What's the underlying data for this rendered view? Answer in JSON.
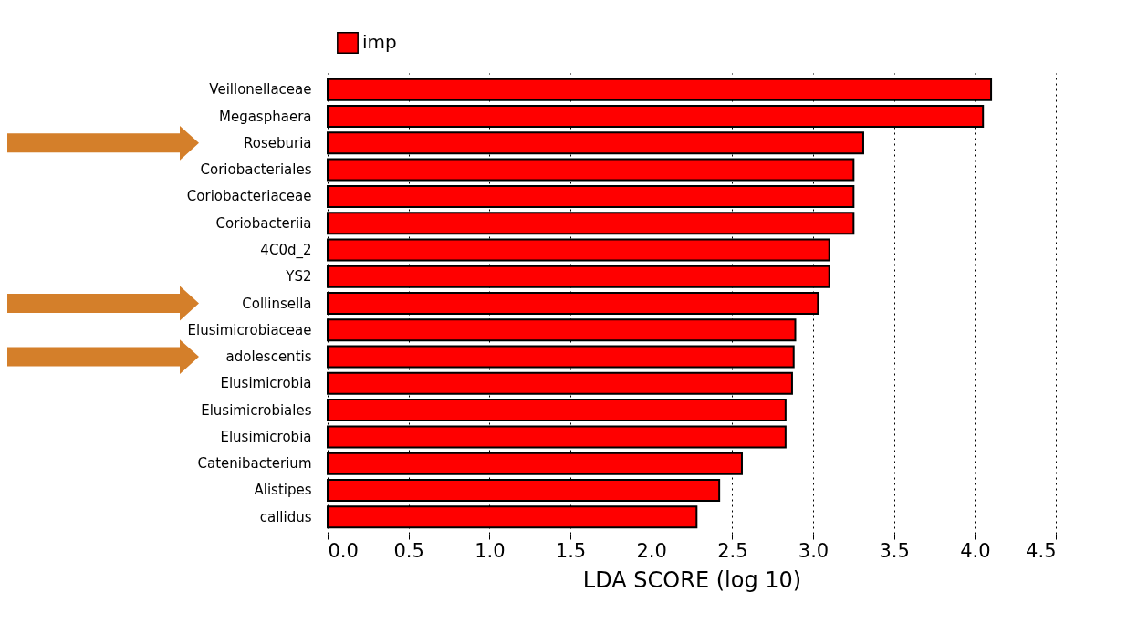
{
  "chart_data": {
    "type": "bar",
    "orientation": "horizontal",
    "xlabel": "LDA SCORE (log 10)",
    "categories": [
      "Veillonellaceae",
      "Megasphaera",
      "Roseburia",
      "Coriobacteriales",
      "Coriobacteriaceae",
      "Coriobacteriia",
      "4C0d_2",
      "YS2",
      "Collinsella",
      "Elusimicrobiaceae",
      "adolescentis",
      "Elusimicrobia",
      "Elusimicrobiales",
      "Elusimicrobia",
      "Catenibacterium",
      "Alistipes",
      "callidus"
    ],
    "series": [
      {
        "name": "imp",
        "color": "#ff0000",
        "values": [
          4.1,
          4.05,
          3.31,
          3.25,
          3.25,
          3.25,
          3.1,
          3.1,
          3.03,
          2.89,
          2.88,
          2.87,
          2.83,
          2.83,
          2.56,
          2.42,
          2.28
        ]
      }
    ],
    "xlim": [
      0,
      4.5
    ],
    "xticks": [
      {
        "value": 0,
        "label": "0.0"
      },
      {
        "value": 0.5,
        "label": "0.5"
      },
      {
        "value": 1,
        "label": "1.0"
      },
      {
        "value": 1.5,
        "label": "1.5"
      },
      {
        "value": 2,
        "label": "2.0"
      },
      {
        "value": 2.5,
        "label": "2.5"
      },
      {
        "value": 3,
        "label": "3.0"
      },
      {
        "value": 3.5,
        "label": "3.5"
      },
      {
        "value": 4,
        "label": "4.0"
      },
      {
        "value": 4.5,
        "label": "4.5"
      }
    ],
    "grid": "x",
    "legend": "top left"
  }
}
